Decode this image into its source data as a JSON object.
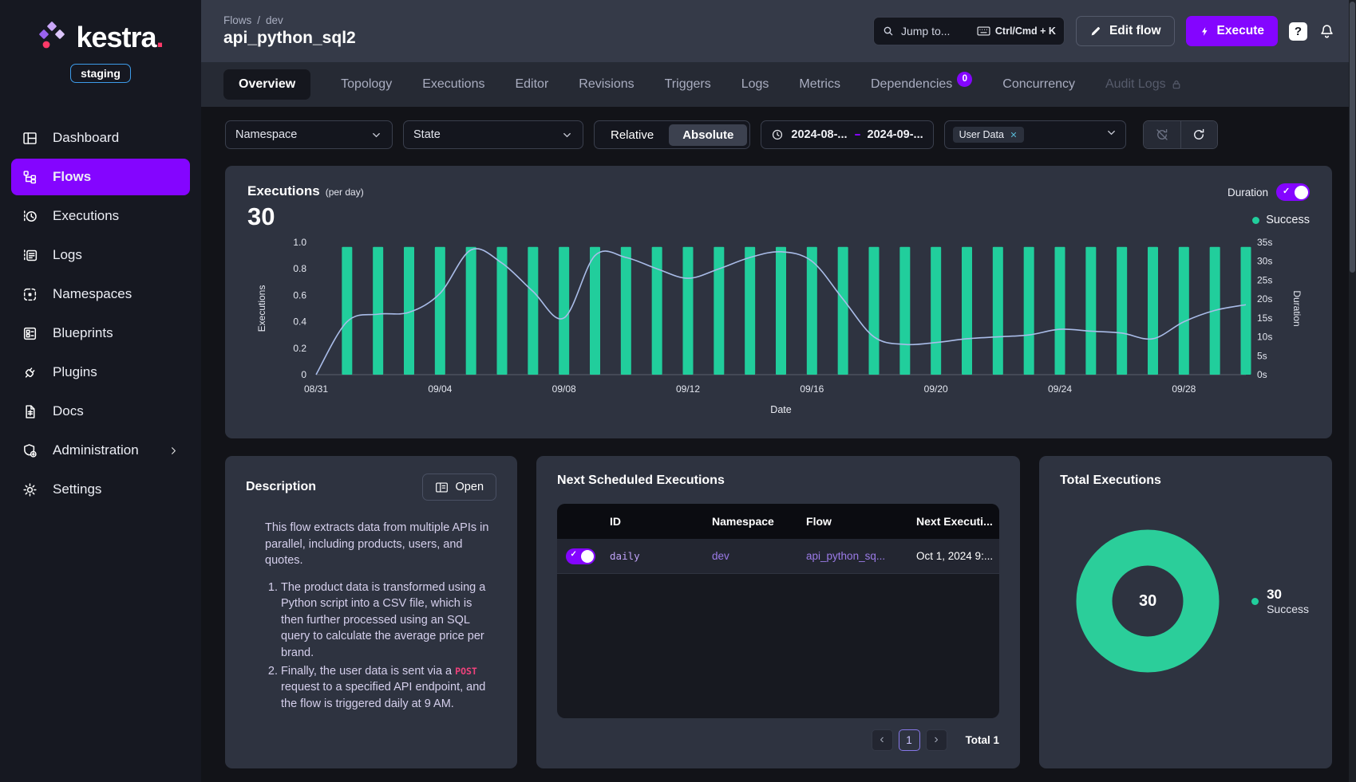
{
  "brand": {
    "name": "kestra",
    "dot": ".",
    "env": "staging"
  },
  "sidebar": {
    "items": [
      {
        "label": "Dashboard",
        "icon": "dashboard",
        "active": false
      },
      {
        "label": "Flows",
        "icon": "flows",
        "active": true
      },
      {
        "label": "Executions",
        "icon": "executions",
        "active": false
      },
      {
        "label": "Logs",
        "icon": "logs",
        "active": false
      },
      {
        "label": "Namespaces",
        "icon": "namespaces",
        "active": false
      },
      {
        "label": "Blueprints",
        "icon": "blueprints",
        "active": false
      },
      {
        "label": "Plugins",
        "icon": "plugins",
        "active": false
      },
      {
        "label": "Docs",
        "icon": "docs",
        "active": false
      },
      {
        "label": "Administration",
        "icon": "administration",
        "active": false,
        "chevron": true
      },
      {
        "label": "Settings",
        "icon": "settings",
        "active": false
      }
    ]
  },
  "header": {
    "breadcrumb": {
      "root": "Flows",
      "sep": "/",
      "namespace": "dev"
    },
    "title": "api_python_sql2",
    "search_placeholder": "Jump to...",
    "search_shortcut": "Ctrl/Cmd + K",
    "edit_flow_label": "Edit flow",
    "execute_label": "Execute",
    "help_label": "?"
  },
  "tabs": [
    {
      "label": "Overview",
      "active": true
    },
    {
      "label": "Topology"
    },
    {
      "label": "Executions"
    },
    {
      "label": "Editor"
    },
    {
      "label": "Revisions"
    },
    {
      "label": "Triggers"
    },
    {
      "label": "Logs"
    },
    {
      "label": "Metrics"
    },
    {
      "label": "Dependencies",
      "badge": "0"
    },
    {
      "label": "Concurrency"
    },
    {
      "label": "Audit Logs",
      "locked": true
    }
  ],
  "filters": {
    "namespace_placeholder": "Namespace",
    "state_placeholder": "State",
    "relative_label": "Relative",
    "absolute_label": "Absolute",
    "date_start": "2024-08-...",
    "date_end": "2024-09-...",
    "tag_value": "User Data"
  },
  "executions_card": {
    "title": "Executions",
    "subtitle": "(per day)",
    "count": "30",
    "duration_label": "Duration",
    "legend_label": "Success"
  },
  "chart_data": {
    "type": "bar+line",
    "title": "Executions (per day)",
    "x": [
      "08/31",
      "09/01",
      "09/02",
      "09/03",
      "09/04",
      "09/05",
      "09/06",
      "09/07",
      "09/08",
      "09/09",
      "09/10",
      "09/11",
      "09/12",
      "09/13",
      "09/14",
      "09/15",
      "09/16",
      "09/17",
      "09/18",
      "09/19",
      "09/20",
      "09/21",
      "09/22",
      "09/23",
      "09/24",
      "09/25",
      "09/26",
      "09/27",
      "09/28",
      "09/29",
      "09/30"
    ],
    "x_tick_every": 4,
    "xlabel": "Date",
    "left_axis": {
      "label": "Executions",
      "ticks": [
        0,
        0.2,
        0.4,
        0.6,
        0.8,
        1.0
      ],
      "range": [
        0,
        1
      ]
    },
    "right_axis": {
      "label": "Duration",
      "ticks": [
        "0s",
        "5s",
        "10s",
        "15s",
        "20s",
        "25s",
        "30s",
        "35s"
      ],
      "range": [
        0,
        35
      ]
    },
    "series": [
      {
        "name": "Success",
        "type": "bar",
        "axis": "left",
        "color": "#21ce9c",
        "values": [
          0,
          1,
          1,
          1,
          1,
          1,
          1,
          1,
          1,
          1,
          1,
          1,
          1,
          1,
          1,
          1,
          1,
          1,
          1,
          1,
          1,
          1,
          1,
          1,
          1,
          1,
          1,
          1,
          1,
          1,
          1
        ]
      },
      {
        "name": "Duration",
        "type": "line",
        "axis": "right",
        "color": "#a9bce8",
        "values": [
          0,
          14,
          16,
          16.5,
          21.5,
          33,
          29.5,
          22,
          15,
          31.5,
          31,
          28,
          25.5,
          28,
          31,
          32.5,
          30,
          20,
          10,
          8,
          8.5,
          9.5,
          10,
          10.5,
          12,
          11.5,
          11,
          9.5,
          14,
          17,
          18.5
        ]
      }
    ],
    "legend": [
      {
        "name": "Success",
        "color": "#21ce9c"
      }
    ],
    "grid": false
  },
  "description_card": {
    "title": "Description",
    "open_label": "Open",
    "paragraph": "This flow extracts data from multiple APIs in parallel, including products, users, and quotes.",
    "items": [
      [
        {
          "text": "The product data is transformed using a Python script into a CSV file, which is then further processed using an SQL query to calculate the average price per brand."
        }
      ],
      [
        {
          "text": "Finally, the user data is sent via a "
        },
        {
          "code": "POST"
        },
        {
          "text": " request to a specified API endpoint, and the flow is triggered daily at 9 AM."
        }
      ]
    ]
  },
  "schedule_card": {
    "title": "Next Scheduled Executions",
    "columns": [
      "ID",
      "Namespace",
      "Flow",
      "Next Executi..."
    ],
    "rows": [
      {
        "enabled": true,
        "id": "daily",
        "namespace": "dev",
        "flow": "api_python_sq...",
        "next": "Oct 1, 2024 9:..."
      }
    ],
    "pagination": {
      "prev": "‹",
      "page": "1",
      "next": "›",
      "total": "Total 1"
    }
  },
  "total_card": {
    "title": "Total Executions",
    "count": "30",
    "legend_value": "30",
    "legend_label": "Success",
    "chart_data": {
      "type": "pie",
      "categories": [
        "Success"
      ],
      "values": [
        30
      ],
      "colors": [
        "#2bce9a"
      ],
      "donut": true
    }
  },
  "colors": {
    "accent_purple": "#8405ff",
    "success_green": "#21ce9c",
    "line_blue": "#a9bce8",
    "brand_pink": "#fd3a69",
    "card_bg": "#2e3340",
    "sidebar_bg": "#161821"
  }
}
